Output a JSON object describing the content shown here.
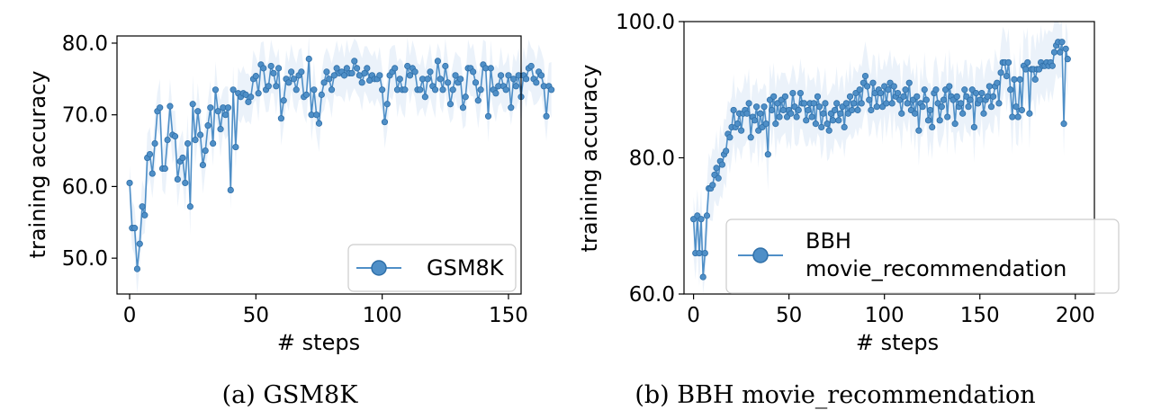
{
  "colors": {
    "series": "#4f8fc7",
    "marker_edge": "#2f6fa8",
    "band": "#dbe8f5"
  },
  "chart_data": [
    {
      "type": "line",
      "caption": "(a)  GSM8K",
      "xlabel": "# steps",
      "ylabel": "training accuracy",
      "xlim": [
        -5,
        155
      ],
      "ylim": [
        45,
        81
      ],
      "xticks": [
        0,
        50,
        100,
        150
      ],
      "yticks": [
        50.0,
        60.0,
        70.0,
        80.0
      ],
      "xtick_labels": [
        "0",
        "50",
        "100",
        "150"
      ],
      "ytick_labels": [
        "50.0",
        "60.0",
        "70.0",
        "80.0"
      ],
      "legend": {
        "position": "lower-right",
        "entries": [
          "GSM8K"
        ]
      },
      "series": [
        {
          "name": "GSM8K",
          "x_start": 0,
          "x_step": 1,
          "y": [
            60.5,
            54.2,
            54.2,
            48.5,
            52.0,
            57.2,
            56.0,
            64.0,
            64.5,
            61.8,
            66.0,
            70.5,
            71.0,
            62.5,
            62.5,
            66.5,
            71.2,
            67.2,
            67.0,
            61.0,
            63.5,
            64.0,
            60.5,
            66.0,
            57.2,
            71.5,
            66.5,
            70.5,
            67.2,
            63.0,
            65.0,
            68.5,
            71.0,
            66.0,
            73.5,
            70.5,
            68.0,
            71.0,
            70.0,
            71.0,
            59.5,
            73.5,
            65.5,
            73.0,
            72.5,
            73.0,
            72.8,
            71.8,
            72.5,
            75.0,
            75.4,
            73.0,
            77.0,
            76.5,
            73.5,
            74.0,
            76.8,
            75.8,
            74.0,
            76.5,
            69.5,
            72.0,
            75.0,
            74.5,
            76.0,
            75.0,
            73.5,
            75.5,
            76.0,
            72.5,
            72.8,
            77.8,
            70.0,
            73.5,
            70.0,
            68.8,
            72.8,
            74.5,
            76.0,
            75.0,
            73.5,
            75.5,
            76.5,
            75.8,
            76.0,
            75.5,
            76.5,
            75.8,
            75.8,
            77.5,
            76.5,
            75.5,
            74.5,
            75.8,
            76.5,
            74.8,
            75.5,
            75.0,
            75.0,
            75.5,
            73.5,
            69.0,
            71.5,
            75.5,
            76.0,
            76.5,
            73.5,
            75.0,
            73.5,
            73.5,
            76.8,
            75.5,
            76.5,
            76.0,
            73.5,
            73.5,
            75.0,
            72.5,
            75.0,
            76.0,
            74.0,
            73.5,
            77.5,
            75.0,
            73.5,
            76.8,
            74.5,
            71.5,
            73.5,
            75.5,
            74.5,
            75.0,
            71.0,
            72.5,
            76.5,
            76.5,
            76.0,
            74.5,
            72.0,
            73.5,
            77.0,
            76.5,
            69.8,
            76.5,
            73.5,
            73.0,
            74.0,
            75.5,
            74.0,
            73.5,
            75.5,
            71.0,
            75.0,
            74.0,
            75.5,
            72.5,
            75.5,
            75.0,
            76.5,
            76.8,
            75.0,
            74.5,
            76.0,
            75.5,
            74.0,
            69.8,
            74.0,
            73.5
          ],
          "spread": 4.0
        }
      ]
    },
    {
      "type": "line",
      "caption": "(b)  BBH movie_recommendation",
      "xlabel": "# steps",
      "ylabel": "training accuracy",
      "xlim": [
        -5,
        210
      ],
      "ylim": [
        60,
        100
      ],
      "xticks": [
        0,
        50,
        100,
        150,
        200
      ],
      "yticks": [
        60.0,
        80.0,
        100.0
      ],
      "xtick_labels": [
        "0",
        "50",
        "100",
        "150",
        "200"
      ],
      "ytick_labels": [
        "60.0",
        "80.0",
        "100.0"
      ],
      "legend": {
        "position": "lower-right",
        "entries": [
          "BBH\nmovie_recommendation"
        ]
      },
      "series": [
        {
          "name": "BBH\nmovie_recommendation",
          "x_start": 0,
          "x_step": 1,
          "y": [
            71.0,
            66.0,
            71.5,
            66.0,
            71.0,
            62.5,
            66.0,
            71.5,
            75.5,
            75.5,
            76.0,
            77.5,
            78.5,
            77.0,
            79.5,
            79.0,
            80.5,
            81.0,
            83.5,
            83.0,
            84.5,
            87.0,
            84.5,
            85.0,
            86.5,
            84.0,
            86.5,
            87.0,
            86.5,
            88.0,
            83.0,
            86.0,
            85.5,
            87.5,
            84.0,
            86.5,
            84.5,
            87.5,
            85.0,
            80.5,
            88.5,
            87.0,
            89.0,
            85.0,
            88.0,
            86.0,
            88.5,
            87.0,
            89.0,
            86.0,
            87.0,
            86.5,
            89.5,
            87.5,
            86.0,
            87.0,
            89.5,
            88.0,
            88.0,
            85.5,
            87.0,
            88.0,
            86.0,
            88.0,
            85.0,
            89.0,
            87.5,
            84.5,
            86.5,
            88.0,
            85.0,
            84.0,
            86.5,
            85.5,
            87.0,
            88.0,
            85.5,
            86.5,
            87.5,
            84.5,
            88.0,
            86.5,
            89.0,
            87.0,
            88.0,
            89.5,
            87.0,
            90.0,
            88.0,
            91.0,
            92.0,
            90.5,
            88.5,
            87.0,
            91.0,
            89.5,
            87.5,
            90.0,
            89.5,
            87.5,
            90.5,
            88.0,
            90.0,
            91.0,
            88.0,
            90.5,
            89.0,
            89.5,
            88.5,
            86.5,
            89.0,
            90.0,
            88.0,
            91.0,
            87.0,
            88.5,
            86.5,
            89.0,
            84.0,
            88.0,
            87.5,
            90.0,
            88.5,
            85.5,
            87.0,
            84.5,
            89.5,
            90.0,
            88.0,
            85.5,
            87.5,
            88.5,
            90.0,
            86.0,
            90.5,
            89.0,
            88.5,
            85.0,
            89.0,
            87.5,
            88.0,
            86.5,
            90.0,
            89.0,
            87.5,
            88.5,
            90.0,
            84.5,
            89.5,
            88.0,
            88.5,
            89.5,
            86.5,
            88.5,
            89.0,
            90.5,
            87.5,
            89.0,
            90.5,
            91.0,
            88.0,
            92.5,
            94.0,
            94.0,
            92.0,
            94.0,
            90.0,
            86.0,
            91.5,
            87.5,
            86.0,
            91.5,
            87.0,
            93.5,
            93.0,
            94.0,
            86.5,
            93.0,
            93.0,
            91.5,
            93.0,
            93.0,
            94.0,
            93.5,
            93.5,
            94.0,
            93.5,
            94.0,
            93.5,
            95.5,
            96.5,
            97.0,
            95.5,
            97.0,
            85.0,
            96.0,
            94.5
          ],
          "spread": 5.5
        }
      ]
    }
  ]
}
